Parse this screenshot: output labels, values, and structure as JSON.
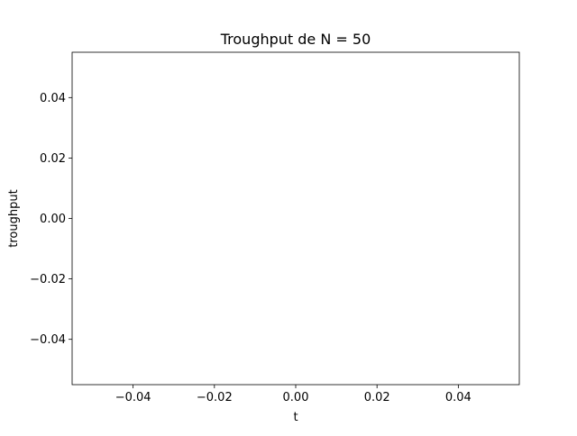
{
  "chart_data": {
    "type": "line",
    "title": "Troughput de N = 50",
    "xlabel": "t",
    "ylabel": "troughput",
    "xlim": [
      -0.055,
      0.055
    ],
    "ylim": [
      -0.055,
      0.055
    ],
    "xticks": [
      -0.04,
      -0.02,
      0.0,
      0.02,
      0.04
    ],
    "xtick_labels": [
      "−0.04",
      "−0.02",
      "0.00",
      "0.02",
      "0.04"
    ],
    "yticks": [
      -0.04,
      -0.02,
      0.0,
      0.02,
      0.04
    ],
    "ytick_labels": [
      "−0.04",
      "−0.02",
      "0.00",
      "0.02",
      "0.04"
    ],
    "grid": false,
    "series": [
      {
        "x": [],
        "y": []
      }
    ]
  }
}
